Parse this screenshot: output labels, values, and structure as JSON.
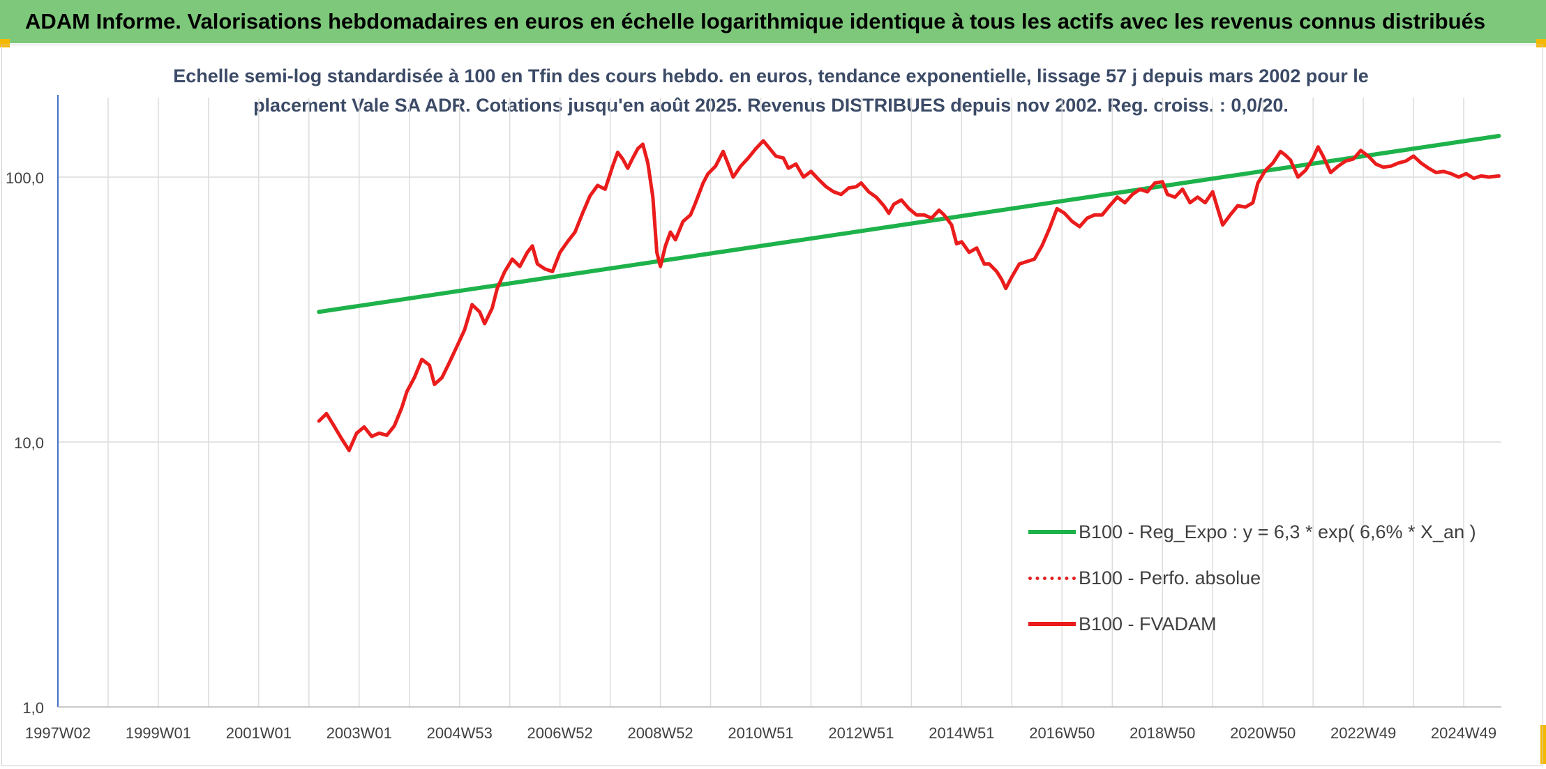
{
  "header": {
    "title": "ADAM Informe. Valorisations hebdomadaires en euros en échelle logarithmique identique à tous les actifs avec les revenus connus distribués"
  },
  "chart_data": {
    "type": "line",
    "title_line1": "Echelle semi-log standardisée à 100 en Tfin des cours hebdo. en euros, tendance exponentielle, lissage 57 j depuis mars 2002 pour le",
    "title_line2": "placement Vale SA ADR. Cotations jusqu'en août 2025. Revenus DISTRIBUES depuis nov 2002. Reg. croiss. : 0,0/20.",
    "y_scale": "log",
    "ylim": [
      1,
      170
    ],
    "y_ticks": [
      {
        "value": 1,
        "label": "1,0"
      },
      {
        "value": 10,
        "label": "10,0"
      },
      {
        "value": 100,
        "label": "100,0"
      }
    ],
    "xlim": [
      1997.0,
      2025.75
    ],
    "x_tick_labels": [
      "1997W02",
      "1999W01",
      "2001W01",
      "2003W01",
      "2004W53",
      "2006W52",
      "2008W52",
      "2010W51",
      "2012W51",
      "2014W51",
      "2016W50",
      "2018W50",
      "2020W50",
      "2022W49",
      "2024W49"
    ],
    "x_tick_values": [
      1997.0,
      1999.0,
      2001.0,
      2003.0,
      2005.0,
      2007.0,
      2009.0,
      2011.0,
      2013.0,
      2015.0,
      2017.0,
      2019.0,
      2021.0,
      2023.0,
      2025.0
    ],
    "grid_values": [
      1997.0,
      1998.0,
      1999.0,
      2000.0,
      2001.0,
      2002.0,
      2003.0,
      2004.0,
      2005.0,
      2006.0,
      2007.0,
      2008.0,
      2009.0,
      2010.0,
      2011.0,
      2012.0,
      2013.0,
      2014.0,
      2015.0,
      2016.0,
      2017.0,
      2018.0,
      2019.0,
      2020.0,
      2021.0,
      2022.0,
      2023.0,
      2024.0,
      2025.0
    ],
    "grid": true,
    "legend_position": "bottom-right",
    "series": [
      {
        "name": "B100 - Reg_Expo : y = 6,3 * exp( 6,6% *  X_an )",
        "style": "solid",
        "color": "#1eb24b",
        "points": [
          [
            2002.2,
            31.0
          ],
          [
            2025.7,
            143.0
          ]
        ]
      },
      {
        "name": "B100 - Perfo. absolue",
        "style": "dotted",
        "color": "#e02020",
        "points": []
      },
      {
        "name": "B100 - FVADAM",
        "style": "solid",
        "color": "#ea1c1c",
        "points": [
          [
            2002.2,
            12.0
          ],
          [
            2002.35,
            12.8
          ],
          [
            2002.5,
            11.5
          ],
          [
            2002.65,
            10.3
          ],
          [
            2002.8,
            9.3
          ],
          [
            2002.95,
            10.8
          ],
          [
            2003.1,
            11.4
          ],
          [
            2003.25,
            10.5
          ],
          [
            2003.4,
            10.8
          ],
          [
            2003.55,
            10.6
          ],
          [
            2003.7,
            11.5
          ],
          [
            2003.85,
            13.5
          ],
          [
            2003.95,
            15.5
          ],
          [
            2004.1,
            17.5
          ],
          [
            2004.25,
            20.5
          ],
          [
            2004.4,
            19.5
          ],
          [
            2004.5,
            16.5
          ],
          [
            2004.65,
            17.5
          ],
          [
            2004.8,
            20.0
          ],
          [
            2004.95,
            23.0
          ],
          [
            2005.1,
            26.5
          ],
          [
            2005.25,
            33.0
          ],
          [
            2005.4,
            31.0
          ],
          [
            2005.5,
            28.0
          ],
          [
            2005.65,
            32.0
          ],
          [
            2005.75,
            38.0
          ],
          [
            2005.9,
            44.0
          ],
          [
            2006.05,
            49.0
          ],
          [
            2006.2,
            46.0
          ],
          [
            2006.35,
            52.0
          ],
          [
            2006.45,
            55.0
          ],
          [
            2006.55,
            47.0
          ],
          [
            2006.7,
            45.0
          ],
          [
            2006.85,
            44.0
          ],
          [
            2007.0,
            52.0
          ],
          [
            2007.15,
            57.0
          ],
          [
            2007.3,
            62.0
          ],
          [
            2007.45,
            73.0
          ],
          [
            2007.6,
            85.0
          ],
          [
            2007.75,
            93.0
          ],
          [
            2007.9,
            90.0
          ],
          [
            2008.05,
            110.0
          ],
          [
            2008.15,
            124.0
          ],
          [
            2008.25,
            117.0
          ],
          [
            2008.35,
            108.0
          ],
          [
            2008.45,
            118.0
          ],
          [
            2008.55,
            128.0
          ],
          [
            2008.65,
            133.0
          ],
          [
            2008.75,
            113.0
          ],
          [
            2008.85,
            84.0
          ],
          [
            2008.93,
            52.0
          ],
          [
            2009.0,
            46.0
          ],
          [
            2009.1,
            55.0
          ],
          [
            2009.2,
            62.0
          ],
          [
            2009.3,
            58.0
          ],
          [
            2009.45,
            68.0
          ],
          [
            2009.6,
            72.0
          ],
          [
            2009.7,
            80.0
          ],
          [
            2009.85,
            95.0
          ],
          [
            2009.95,
            103.0
          ],
          [
            2010.1,
            110.0
          ],
          [
            2010.25,
            125.0
          ],
          [
            2010.35,
            112.0
          ],
          [
            2010.45,
            100.0
          ],
          [
            2010.6,
            110.0
          ],
          [
            2010.75,
            118.0
          ],
          [
            2010.9,
            128.0
          ],
          [
            2011.05,
            137.0
          ],
          [
            2011.15,
            130.0
          ],
          [
            2011.3,
            120.0
          ],
          [
            2011.45,
            118.0
          ],
          [
            2011.55,
            108.0
          ],
          [
            2011.7,
            112.0
          ],
          [
            2011.85,
            100.0
          ],
          [
            2012.0,
            105.0
          ],
          [
            2012.15,
            98.0
          ],
          [
            2012.3,
            92.0
          ],
          [
            2012.45,
            88.0
          ],
          [
            2012.6,
            86.0
          ],
          [
            2012.75,
            91.0
          ],
          [
            2012.9,
            92.0
          ],
          [
            2013.0,
            95.0
          ],
          [
            2013.15,
            88.0
          ],
          [
            2013.3,
            84.0
          ],
          [
            2013.45,
            78.0
          ],
          [
            2013.55,
            73.0
          ],
          [
            2013.65,
            79.0
          ],
          [
            2013.8,
            82.0
          ],
          [
            2013.95,
            76.0
          ],
          [
            2014.1,
            72.0
          ],
          [
            2014.25,
            72.0
          ],
          [
            2014.4,
            70.0
          ],
          [
            2014.55,
            75.0
          ],
          [
            2014.65,
            72.0
          ],
          [
            2014.8,
            66.0
          ],
          [
            2014.9,
            56.0
          ],
          [
            2015.0,
            57.0
          ],
          [
            2015.15,
            52.0
          ],
          [
            2015.3,
            54.0
          ],
          [
            2015.45,
            47.0
          ],
          [
            2015.55,
            47.0
          ],
          [
            2015.7,
            44.0
          ],
          [
            2015.8,
            41.0
          ],
          [
            2015.88,
            38.0
          ],
          [
            2016.0,
            42.0
          ],
          [
            2016.15,
            47.0
          ],
          [
            2016.3,
            48.0
          ],
          [
            2016.45,
            49.0
          ],
          [
            2016.6,
            55.0
          ],
          [
            2016.75,
            64.0
          ],
          [
            2016.9,
            76.0
          ],
          [
            2017.05,
            73.0
          ],
          [
            2017.2,
            68.0
          ],
          [
            2017.35,
            65.0
          ],
          [
            2017.5,
            70.0
          ],
          [
            2017.65,
            72.0
          ],
          [
            2017.8,
            72.0
          ],
          [
            2017.95,
            78.0
          ],
          [
            2018.1,
            84.0
          ],
          [
            2018.25,
            80.0
          ],
          [
            2018.4,
            86.0
          ],
          [
            2018.55,
            90.0
          ],
          [
            2018.7,
            88.0
          ],
          [
            2018.85,
            95.0
          ],
          [
            2019.0,
            96.0
          ],
          [
            2019.1,
            86.0
          ],
          [
            2019.25,
            84.0
          ],
          [
            2019.4,
            90.0
          ],
          [
            2019.55,
            80.0
          ],
          [
            2019.7,
            84.0
          ],
          [
            2019.85,
            80.0
          ],
          [
            2020.0,
            88.0
          ],
          [
            2020.1,
            76.0
          ],
          [
            2020.2,
            66.0
          ],
          [
            2020.35,
            72.0
          ],
          [
            2020.5,
            78.0
          ],
          [
            2020.65,
            77.0
          ],
          [
            2020.8,
            80.0
          ],
          [
            2020.9,
            95.0
          ],
          [
            2021.05,
            106.0
          ],
          [
            2021.2,
            113.0
          ],
          [
            2021.35,
            125.0
          ],
          [
            2021.45,
            121.0
          ],
          [
            2021.55,
            116.0
          ],
          [
            2021.7,
            100.0
          ],
          [
            2021.85,
            106.0
          ],
          [
            2022.0,
            118.0
          ],
          [
            2022.1,
            130.0
          ],
          [
            2022.2,
            120.0
          ],
          [
            2022.35,
            104.0
          ],
          [
            2022.5,
            110.0
          ],
          [
            2022.65,
            115.0
          ],
          [
            2022.8,
            117.0
          ],
          [
            2022.95,
            126.0
          ],
          [
            2023.1,
            120.0
          ],
          [
            2023.25,
            112.0
          ],
          [
            2023.4,
            109.0
          ],
          [
            2023.55,
            110.0
          ],
          [
            2023.7,
            113.0
          ],
          [
            2023.85,
            115.0
          ],
          [
            2024.0,
            120.0
          ],
          [
            2024.15,
            113.0
          ],
          [
            2024.3,
            108.0
          ],
          [
            2024.45,
            104.0
          ],
          [
            2024.6,
            105.0
          ],
          [
            2024.75,
            103.0
          ],
          [
            2024.9,
            100.0
          ],
          [
            2025.05,
            103.0
          ],
          [
            2025.2,
            99.0
          ],
          [
            2025.35,
            101.0
          ],
          [
            2025.5,
            100.0
          ],
          [
            2025.7,
            101.0
          ]
        ]
      }
    ]
  },
  "colors": {
    "title_bar": "#7dc87a",
    "subtitle_text": "#3b4a66",
    "axis_line": "#4472c4",
    "grid": "#dcdcdc"
  }
}
